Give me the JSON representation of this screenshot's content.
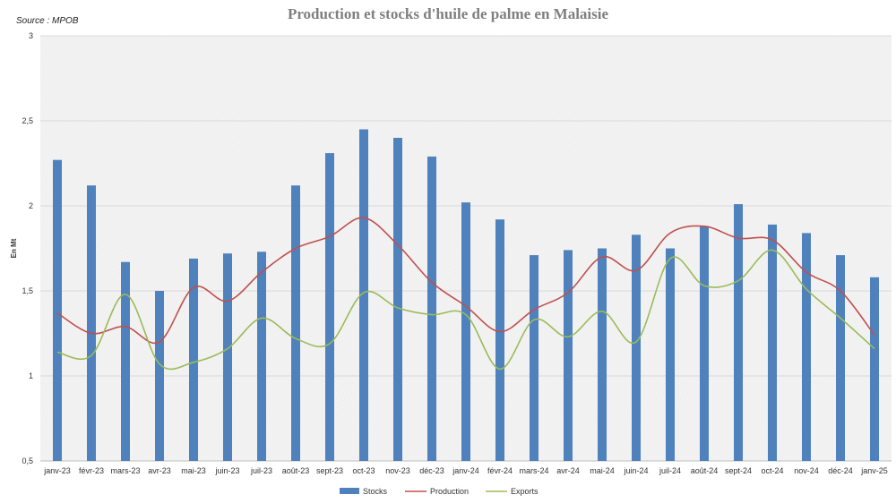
{
  "header": {
    "title": "Production et stocks d'huile de palme en Malaisie",
    "source": "Source : MPOB"
  },
  "colors": {
    "stocks": "#4f81bd",
    "production": "#c0504d",
    "exports": "#9bbb59"
  },
  "chart_data": {
    "type": "bar",
    "title": "Production et stocks d'huile de palme en Malaisie",
    "xlabel": "",
    "ylabel": "En Mt",
    "ylim": [
      0.5,
      3
    ],
    "yticks": [
      "0,5",
      "1",
      "1,5",
      "2",
      "2,5",
      "3"
    ],
    "grid": true,
    "legend_position": "bottom",
    "categories": [
      "janv-23",
      "févr-23",
      "mars-23",
      "avr-23",
      "mai-23",
      "juin-23",
      "juil-23",
      "août-23",
      "sept-23",
      "oct-23",
      "nov-23",
      "déc-23",
      "janv-24",
      "févr-24",
      "mars-24",
      "avr-24",
      "mai-24",
      "juin-24",
      "juil-24",
      "août-24",
      "sept-24",
      "oct-24",
      "nov-24",
      "déc-24",
      "janv-25"
    ],
    "series": [
      {
        "name": "Stocks",
        "kind": "bar",
        "values": [
          2.27,
          2.12,
          1.67,
          1.5,
          1.69,
          1.72,
          1.73,
          2.12,
          2.31,
          2.45,
          2.4,
          2.29,
          2.02,
          1.92,
          1.71,
          1.74,
          1.75,
          1.83,
          1.75,
          1.88,
          2.01,
          1.89,
          1.84,
          1.71,
          1.58
        ]
      },
      {
        "name": "Production",
        "kind": "line",
        "values": [
          1.37,
          1.25,
          1.29,
          1.2,
          1.52,
          1.44,
          1.61,
          1.75,
          1.82,
          1.93,
          1.77,
          1.55,
          1.41,
          1.26,
          1.39,
          1.49,
          1.7,
          1.62,
          1.84,
          1.88,
          1.81,
          1.8,
          1.61,
          1.5,
          1.24
        ]
      },
      {
        "name": "Exports",
        "kind": "line",
        "values": [
          1.14,
          1.12,
          1.48,
          1.07,
          1.08,
          1.16,
          1.34,
          1.22,
          1.19,
          1.49,
          1.4,
          1.36,
          1.36,
          1.04,
          1.33,
          1.23,
          1.38,
          1.2,
          1.69,
          1.53,
          1.56,
          1.74,
          1.51,
          1.34,
          1.16
        ]
      }
    ]
  }
}
